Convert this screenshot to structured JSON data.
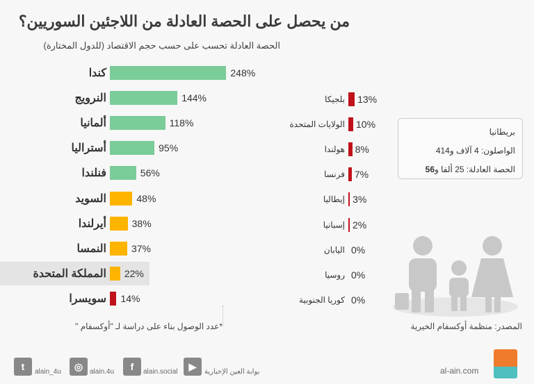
{
  "title": "من يحصل على الحصة العادلة من اللاجئين السوريين؟",
  "subtitle": "الحصة العادلة تحسب على حسب حجم الاقتصاد (للدول المختارة)",
  "colors": {
    "green": "#7acc99",
    "orange": "#ffb400",
    "red": "#c0121a",
    "highlight": "#e4e4e4"
  },
  "chart_data": [
    {
      "type": "bar",
      "orientation": "horizontal",
      "categories": [
        "كندا",
        "النرويج",
        "ألمانيا",
        "أستراليا",
        "فنلندا",
        "السويد",
        "أيرلندا",
        "النمسا",
        "المملكة المتحدة",
        "سويسرا"
      ],
      "values": [
        248,
        144,
        118,
        95,
        56,
        48,
        38,
        37,
        22,
        14
      ],
      "labels": [
        "248%",
        "144%",
        "118%",
        "95%",
        "56%",
        "48%",
        "38%",
        "37%",
        "22%",
        "14%"
      ],
      "bar_colors": [
        "green",
        "green",
        "green",
        "green",
        "green",
        "orange",
        "orange",
        "orange",
        "orange",
        "red"
      ],
      "highlighted": "المملكة المتحدة"
    },
    {
      "type": "bar",
      "orientation": "horizontal",
      "categories": [
        "بلجيكا",
        "الولايات المتحدة",
        "هولندا",
        "فرنسا",
        "إيطاليا",
        "إسبانيا",
        "اليابان",
        "روسيا",
        "كوريا الجنوبية"
      ],
      "values": [
        13,
        10,
        8,
        7,
        3,
        2,
        0,
        0,
        0
      ],
      "labels": [
        "13%",
        "10%",
        "8%",
        "7%",
        "3%",
        "2%",
        "0%",
        "0%",
        "0%"
      ],
      "bar_color": "red"
    }
  ],
  "info_box": {
    "country": "بريطانيا",
    "arrived": "الواصلون: 4 آلاف و414",
    "fair_share_label": "الحصة العادلة: 25 ألفا و",
    "fair_share_bold": "56"
  },
  "source": "المصدر: منظمة أوكسفام الخيرية",
  "note": "*عدد الوصول بناء على دراسة لـ \"أوكسفام \"",
  "footer": {
    "site": "al-ain.com",
    "twitter": "alain_4u",
    "instagram": "alain.4u",
    "facebook": "alain.social",
    "youtube": "بوابة العين الإخبارية",
    "logo": "العين"
  }
}
